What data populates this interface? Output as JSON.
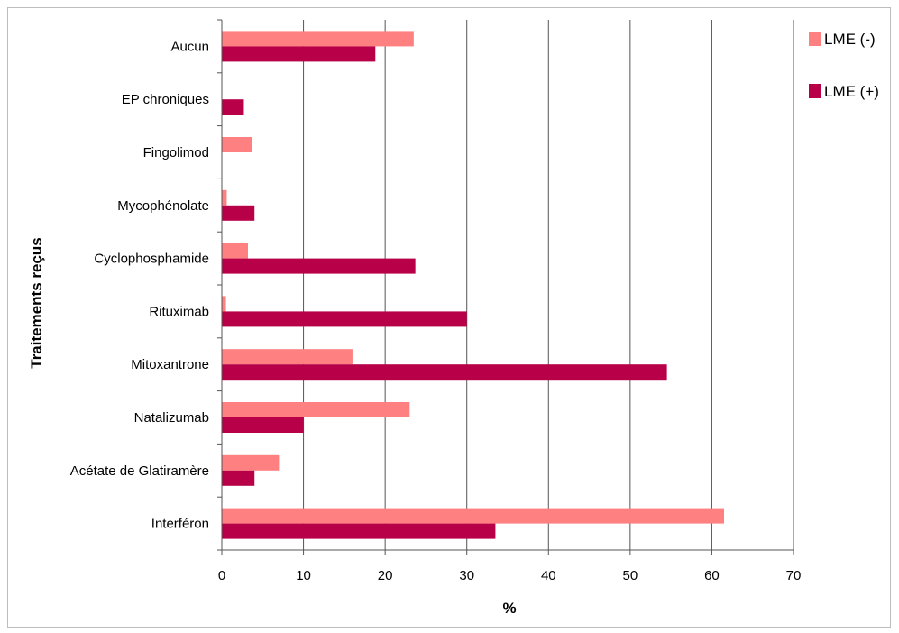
{
  "chart_data": {
    "type": "bar",
    "orientation": "horizontal",
    "categories": [
      "Aucun",
      "EP chroniques",
      "Fingolimod",
      "Mycophénolate",
      "Cyclophosphamide",
      "Rituximab",
      "Mitoxantrone",
      "Natalizumab",
      "Acétate de Glatiramère",
      "Interféron"
    ],
    "series": [
      {
        "name": "LME (-)",
        "color": "#ff8080",
        "values": [
          23.5,
          0,
          3.7,
          0.6,
          3.2,
          0.5,
          16,
          23,
          7,
          61.5
        ]
      },
      {
        "name": "LME (+)",
        "color": "#b80048",
        "values": [
          18.8,
          2.7,
          0,
          4,
          23.7,
          30,
          54.5,
          10,
          4,
          33.5
        ]
      }
    ],
    "xlabel": "%",
    "ylabel": "Traitements reçus",
    "xlim": [
      0,
      70
    ],
    "xticks": [
      "0",
      "10",
      "20",
      "30",
      "40",
      "50",
      "60",
      "70"
    ],
    "grid": "vertical",
    "legend": "top-right"
  }
}
